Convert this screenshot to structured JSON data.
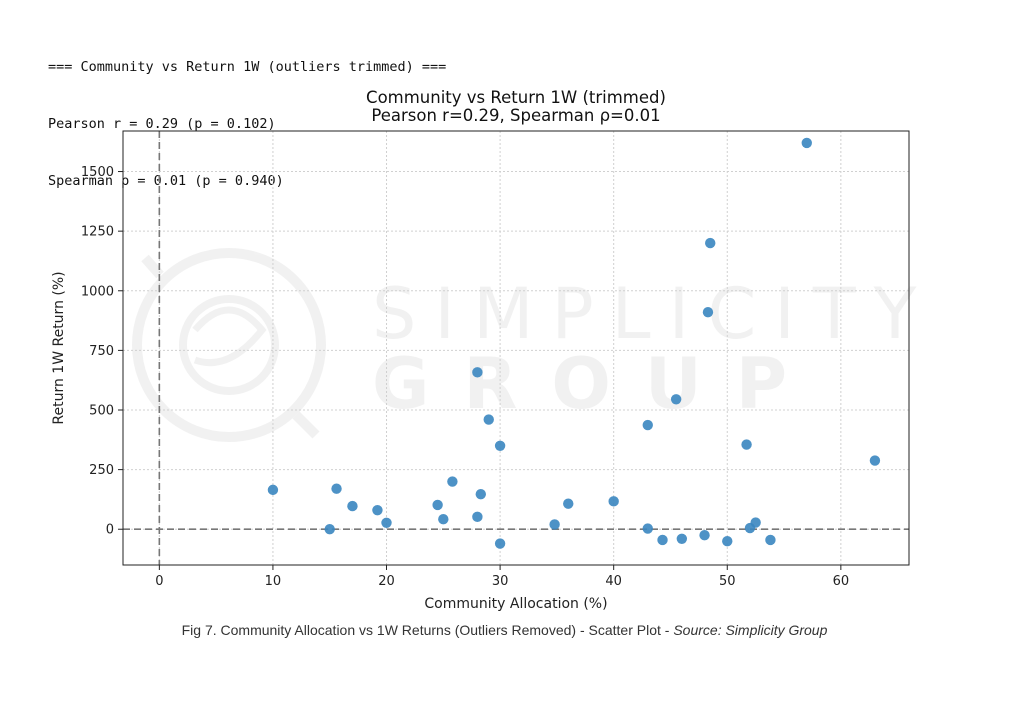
{
  "console": {
    "line1": "=== Community vs Return 1W (outliers trimmed) ===",
    "line2": "Pearson r = 0.29 (p = 0.102)",
    "line3": "Spearman ρ = 0.01 (p = 0.940)"
  },
  "watermark": {
    "line1": "SIMPLICITY",
    "line2": "GROUP"
  },
  "caption": {
    "main": "Fig 7. Community Allocation vs 1W Returns (Outliers Removed) - Scatter Plot - ",
    "source_label": "Source",
    "source_value": ": Simplicity Group"
  },
  "colors": {
    "point": "#3a86c0",
    "grid": "#d0d0d0",
    "refline": "#777777"
  },
  "chart_data": {
    "type": "scatter",
    "title": "Community vs Return 1W (trimmed)",
    "subtitle": "Pearson r=0.29, Spearman ρ=0.01",
    "xlabel": "Community Allocation (%)",
    "ylabel": "Return 1W Return (%)",
    "xlim": [
      -3.2,
      66
    ],
    "ylim": [
      -150,
      1670
    ],
    "xticks": [
      0,
      10,
      20,
      30,
      40,
      50,
      60
    ],
    "yticks": [
      0,
      250,
      500,
      750,
      1000,
      1250,
      1500
    ],
    "grid": true,
    "reference_lines": {
      "x": 0,
      "y": 0,
      "style": "dashed"
    },
    "points": [
      {
        "x": 10.0,
        "y": 165
      },
      {
        "x": 15.0,
        "y": 0
      },
      {
        "x": 15.6,
        "y": 170
      },
      {
        "x": 17.0,
        "y": 97
      },
      {
        "x": 19.2,
        "y": 80
      },
      {
        "x": 20.0,
        "y": 27
      },
      {
        "x": 24.5,
        "y": 102
      },
      {
        "x": 25.0,
        "y": 42
      },
      {
        "x": 25.8,
        "y": 200
      },
      {
        "x": 28.0,
        "y": 52
      },
      {
        "x": 28.0,
        "y": 658
      },
      {
        "x": 28.3,
        "y": 147
      },
      {
        "x": 29.0,
        "y": 460
      },
      {
        "x": 30.0,
        "y": 350
      },
      {
        "x": 30.0,
        "y": -60
      },
      {
        "x": 34.8,
        "y": 20
      },
      {
        "x": 36.0,
        "y": 107
      },
      {
        "x": 40.0,
        "y": 117
      },
      {
        "x": 43.0,
        "y": 3
      },
      {
        "x": 43.0,
        "y": 437
      },
      {
        "x": 44.3,
        "y": -45
      },
      {
        "x": 45.5,
        "y": 545
      },
      {
        "x": 46.0,
        "y": -40
      },
      {
        "x": 48.0,
        "y": -25
      },
      {
        "x": 48.3,
        "y": 910
      },
      {
        "x": 48.5,
        "y": 1200
      },
      {
        "x": 50.0,
        "y": -50
      },
      {
        "x": 51.7,
        "y": 355
      },
      {
        "x": 52.0,
        "y": 5
      },
      {
        "x": 52.5,
        "y": 28
      },
      {
        "x": 53.8,
        "y": -45
      },
      {
        "x": 57.0,
        "y": 1620
      },
      {
        "x": 63.0,
        "y": 288
      }
    ]
  }
}
